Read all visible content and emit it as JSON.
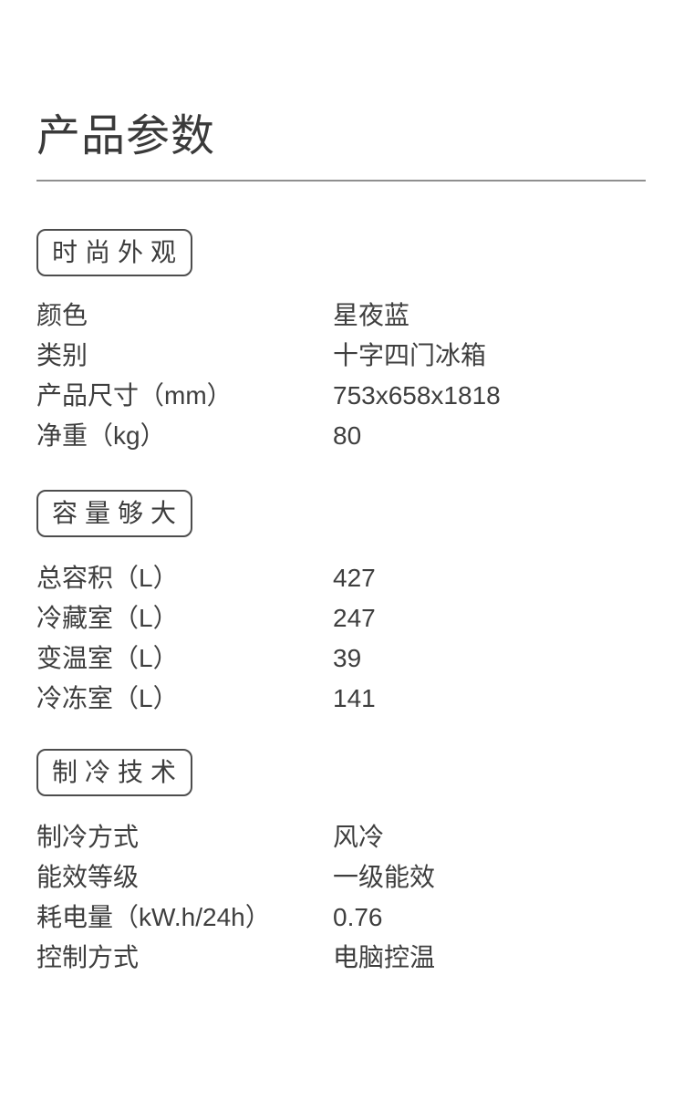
{
  "page": {
    "title": "产品参数"
  },
  "colors": {
    "background": "#ffffff",
    "text": "#3e3e3e",
    "badge_border": "#4d4d4d",
    "divider": "#8f8f8f"
  },
  "sections": [
    {
      "title": "时尚外观",
      "rows": [
        {
          "label": "颜色",
          "value": "星夜蓝"
        },
        {
          "label": "类别",
          "value": "十字四门冰箱"
        },
        {
          "label": "产品尺寸（mm）",
          "value": "753x658x1818"
        },
        {
          "label": "净重（kg）",
          "value": "80"
        }
      ]
    },
    {
      "title": "容量够大",
      "rows": [
        {
          "label": "总容积（L）",
          "value": "427"
        },
        {
          "label": "冷藏室（L）",
          "value": "247"
        },
        {
          "label": "变温室（L）",
          "value": "39"
        },
        {
          "label": "冷冻室（L）",
          "value": "141"
        }
      ]
    },
    {
      "title": "制冷技术",
      "rows": [
        {
          "label": "制冷方式",
          "value": "风冷"
        },
        {
          "label": "能效等级",
          "value": "一级能效"
        },
        {
          "label": "耗电量（kW.h/24h）",
          "value": "0.76"
        },
        {
          "label": "控制方式",
          "value": "电脑控温"
        }
      ]
    }
  ]
}
